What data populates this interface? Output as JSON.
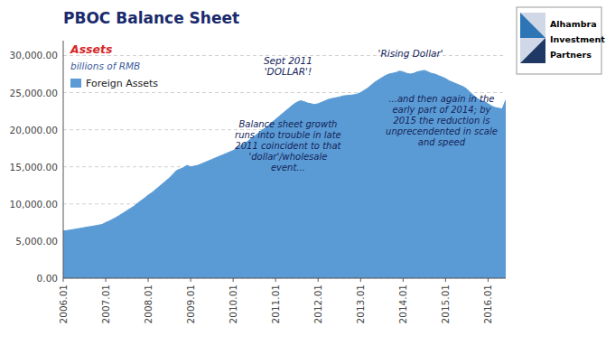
{
  "chart_data": {
    "type": "area",
    "title": "PBOC Balance Sheet",
    "subtitle": "billions of RMB",
    "annotations": [
      "Assets",
      "Sept 2011\n'DOLLAR'!",
      "Balance sheet growth\nruns into trouble in late\n2011 coincident to that\n'dollar'/wholesale\nevent...",
      "'Rising Dollar'",
      "...and then again in the\nearly part of 2014; by\n2015 the reduction is\nunprecendented in scale\nand speed",
      "Alhambra\nInvestment\nPartners"
    ],
    "categories": [
      "2006.01",
      null,
      null,
      null,
      null,
      null,
      null,
      null,
      null,
      null,
      null,
      null,
      "2007.01",
      null,
      null,
      null,
      null,
      null,
      null,
      null,
      null,
      null,
      null,
      null,
      "2008.01",
      null,
      null,
      null,
      null,
      null,
      null,
      null,
      null,
      null,
      null,
      null,
      "2009.01",
      null,
      null,
      null,
      null,
      null,
      null,
      null,
      null,
      null,
      null,
      null,
      "2010.01",
      null,
      null,
      null,
      null,
      null,
      null,
      null,
      null,
      null,
      null,
      null,
      "2011.01",
      null,
      null,
      null,
      null,
      null,
      null,
      null,
      null,
      null,
      null,
      null,
      "2012.01",
      null,
      null,
      null,
      null,
      null,
      null,
      null,
      null,
      null,
      null,
      null,
      "2013.01",
      null,
      null,
      null,
      null,
      null,
      null,
      null,
      null,
      null,
      null,
      null,
      "2014.01",
      null,
      null,
      null,
      null,
      null,
      null,
      null,
      null,
      null,
      null,
      null,
      "2015.01",
      null,
      null,
      null,
      null,
      null,
      null,
      null,
      null,
      null,
      null,
      null,
      "2016.01",
      null,
      null,
      null,
      null,
      null
    ],
    "series": [
      {
        "name": "Foreign Assets",
        "color": "#5B9BD5",
        "values": [
          6370,
          6420,
          6490,
          6560,
          6650,
          6730,
          6820,
          6900,
          6980,
          7060,
          7150,
          7240,
          7500,
          7700,
          7950,
          8200,
          8500,
          8800,
          9100,
          9400,
          9700,
          10100,
          10450,
          10800,
          11200,
          11500,
          11900,
          12300,
          12700,
          13100,
          13500,
          14000,
          14500,
          14700,
          14900,
          15200,
          15000,
          15100,
          15200,
          15400,
          15600,
          15800,
          16000,
          16200,
          16400,
          16600,
          16800,
          17000,
          17200,
          17500,
          17800,
          18100,
          18400,
          18800,
          19100,
          19500,
          19900,
          20200,
          20600,
          21000,
          21400,
          21800,
          22200,
          22600,
          23000,
          23400,
          23700,
          23900,
          23800,
          23600,
          23500,
          23400,
          23500,
          23700,
          23900,
          24100,
          24200,
          24300,
          24400,
          24550,
          24600,
          24650,
          24700,
          24800,
          25000,
          25300,
          25600,
          26000,
          26400,
          26700,
          27000,
          27300,
          27500,
          27600,
          27700,
          27900,
          27800,
          27600,
          27500,
          27600,
          27800,
          27900,
          28000,
          27800,
          27600,
          27500,
          27300,
          27100,
          26900,
          26600,
          26400,
          26200,
          26000,
          25800,
          25500,
          25000,
          24600,
          24200,
          23900,
          23800,
          23500,
          23200,
          23000,
          22900,
          22800,
          24000
        ]
      }
    ],
    "ylim": [
      0,
      32000
    ],
    "yticks": [
      {
        "value": 0,
        "label": "0.00"
      },
      {
        "value": 5000,
        "label": "5,000.00"
      },
      {
        "value": 10000,
        "label": "10,000.00"
      },
      {
        "value": 15000,
        "label": "15,000.00"
      },
      {
        "value": 20000,
        "label": "20,000.00"
      },
      {
        "value": 25000,
        "label": "25,000.00"
      },
      {
        "value": 30000,
        "label": "30,000.00"
      }
    ],
    "grid": true,
    "legend": "upper left"
  }
}
